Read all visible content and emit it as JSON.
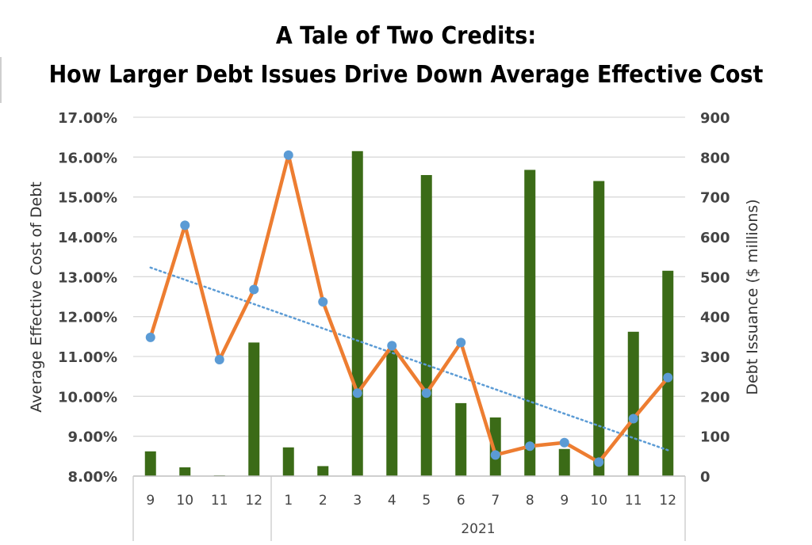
{
  "title_line1": "A Tale of Two Credits:",
  "title_line2": "How Larger Debt Issues Drive Down Average Effective Cost",
  "chart_data": {
    "type": "bar",
    "combo": "bar + line + linear trendline",
    "categories": [
      "9",
      "10",
      "11",
      "12",
      "1",
      "2",
      "3",
      "4",
      "5",
      "6",
      "7",
      "8",
      "9",
      "10",
      "11",
      "12"
    ],
    "category_groups": [
      {
        "label": "",
        "start": 0,
        "end": 3
      },
      {
        "label": "2021",
        "start": 4,
        "end": 15
      }
    ],
    "series": [
      {
        "name": "Debt Issuance",
        "type": "bar",
        "axis": "right",
        "color": "#3b6b17",
        "values": [
          62,
          22,
          2,
          335,
          72,
          25,
          815,
          315,
          755,
          183,
          147,
          768,
          68,
          740,
          362,
          515
        ]
      },
      {
        "name": "Average Effective Cost of Debt",
        "type": "line",
        "axis": "left",
        "color": "#ed7d31",
        "marker_color": "#5b9bd5",
        "values": [
          11.48,
          14.29,
          10.92,
          12.68,
          16.05,
          12.37,
          10.08,
          11.27,
          10.08,
          11.35,
          8.53,
          8.75,
          8.84,
          8.35,
          9.44,
          10.47
        ]
      },
      {
        "type": "trendline",
        "axis": "left",
        "color": "#5b9bd5",
        "style": "dotted",
        "from": [
          0,
          13.23
        ],
        "to": [
          15,
          8.65
        ]
      }
    ],
    "y_left": {
      "label": "Average Effective Cost of Debt",
      "ylim": [
        8,
        17
      ],
      "ticks": [
        "8.00%",
        "9.00%",
        "10.00%",
        "11.00%",
        "12.00%",
        "13.00%",
        "14.00%",
        "15.00%",
        "16.00%",
        "17.00%"
      ]
    },
    "y_right": {
      "label": "Debt Issuance ($ millions)",
      "ylim": [
        0,
        900
      ],
      "ticks": [
        "0",
        "100",
        "200",
        "300",
        "400",
        "500",
        "600",
        "700",
        "800",
        "900"
      ]
    },
    "grid": true,
    "legend": "none"
  }
}
